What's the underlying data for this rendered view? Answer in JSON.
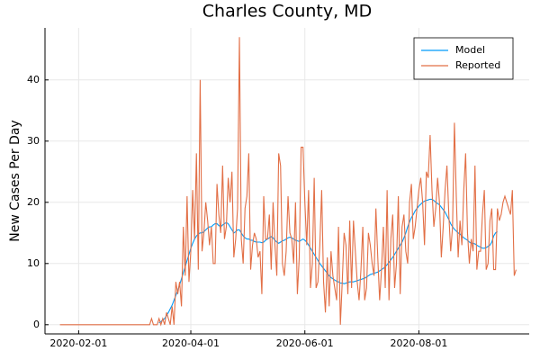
{
  "chart_data": {
    "type": "line",
    "title": "Charles County, MD",
    "y_label": "New Cases Per Day",
    "x": [
      "2020-01-22",
      "2020-01-23",
      "2020-01-24",
      "2020-01-25",
      "2020-01-26",
      "2020-01-27",
      "2020-01-28",
      "2020-01-29",
      "2020-01-30",
      "2020-01-31",
      "2020-02-01",
      "2020-02-02",
      "2020-02-03",
      "2020-02-04",
      "2020-02-05",
      "2020-02-06",
      "2020-02-07",
      "2020-02-08",
      "2020-02-09",
      "2020-02-10",
      "2020-02-11",
      "2020-02-12",
      "2020-02-13",
      "2020-02-14",
      "2020-02-15",
      "2020-02-16",
      "2020-02-17",
      "2020-02-18",
      "2020-02-19",
      "2020-02-20",
      "2020-02-21",
      "2020-02-22",
      "2020-02-23",
      "2020-02-24",
      "2020-02-25",
      "2020-02-26",
      "2020-02-27",
      "2020-02-28",
      "2020-02-29",
      "2020-03-01",
      "2020-03-02",
      "2020-03-03",
      "2020-03-04",
      "2020-03-05",
      "2020-03-06",
      "2020-03-07",
      "2020-03-08",
      "2020-03-09",
      "2020-03-10",
      "2020-03-11",
      "2020-03-12",
      "2020-03-13",
      "2020-03-14",
      "2020-03-15",
      "2020-03-16",
      "2020-03-17",
      "2020-03-18",
      "2020-03-19",
      "2020-03-20",
      "2020-03-21",
      "2020-03-22",
      "2020-03-23",
      "2020-03-24",
      "2020-03-25",
      "2020-03-26",
      "2020-03-27",
      "2020-03-28",
      "2020-03-29",
      "2020-03-30",
      "2020-03-31",
      "2020-04-01",
      "2020-04-02",
      "2020-04-03",
      "2020-04-04",
      "2020-04-05",
      "2020-04-06",
      "2020-04-07",
      "2020-04-08",
      "2020-04-09",
      "2020-04-10",
      "2020-04-11",
      "2020-04-12",
      "2020-04-13",
      "2020-04-14",
      "2020-04-15",
      "2020-04-16",
      "2020-04-17",
      "2020-04-18",
      "2020-04-19",
      "2020-04-20",
      "2020-04-21",
      "2020-04-22",
      "2020-04-23",
      "2020-04-24",
      "2020-04-25",
      "2020-04-26",
      "2020-04-27",
      "2020-04-28",
      "2020-04-29",
      "2020-04-30",
      "2020-05-01",
      "2020-05-02",
      "2020-05-03",
      "2020-05-04",
      "2020-05-05",
      "2020-05-06",
      "2020-05-07",
      "2020-05-08",
      "2020-05-09",
      "2020-05-10",
      "2020-05-11",
      "2020-05-12",
      "2020-05-13",
      "2020-05-14",
      "2020-05-15",
      "2020-05-16",
      "2020-05-17",
      "2020-05-18",
      "2020-05-19",
      "2020-05-20",
      "2020-05-21",
      "2020-05-22",
      "2020-05-23",
      "2020-05-24",
      "2020-05-25",
      "2020-05-26",
      "2020-05-27",
      "2020-05-28",
      "2020-05-29",
      "2020-05-30",
      "2020-05-31",
      "2020-06-01",
      "2020-06-02",
      "2020-06-03",
      "2020-06-04",
      "2020-06-05",
      "2020-06-06",
      "2020-06-07",
      "2020-06-08",
      "2020-06-09",
      "2020-06-10",
      "2020-06-11",
      "2020-06-12",
      "2020-06-13",
      "2020-06-14",
      "2020-06-15",
      "2020-06-16",
      "2020-06-17",
      "2020-06-18",
      "2020-06-19",
      "2020-06-20",
      "2020-06-21",
      "2020-06-22",
      "2020-06-23",
      "2020-06-24",
      "2020-06-25",
      "2020-06-26",
      "2020-06-27",
      "2020-06-28",
      "2020-06-29",
      "2020-06-30",
      "2020-07-01",
      "2020-07-02",
      "2020-07-03",
      "2020-07-04",
      "2020-07-05",
      "2020-07-06",
      "2020-07-07",
      "2020-07-08",
      "2020-07-09",
      "2020-07-10",
      "2020-07-11",
      "2020-07-12",
      "2020-07-13",
      "2020-07-14",
      "2020-07-15",
      "2020-07-16",
      "2020-07-17",
      "2020-07-18",
      "2020-07-19",
      "2020-07-20",
      "2020-07-21",
      "2020-07-22",
      "2020-07-23",
      "2020-07-24",
      "2020-07-25",
      "2020-07-26",
      "2020-07-27",
      "2020-07-28",
      "2020-07-29",
      "2020-07-30",
      "2020-07-31",
      "2020-08-01",
      "2020-08-02",
      "2020-08-03",
      "2020-08-04",
      "2020-08-05",
      "2020-08-06",
      "2020-08-07",
      "2020-08-08",
      "2020-08-09",
      "2020-08-10",
      "2020-08-11",
      "2020-08-12",
      "2020-08-13",
      "2020-08-14",
      "2020-08-15",
      "2020-08-16",
      "2020-08-17",
      "2020-08-18",
      "2020-08-19",
      "2020-08-20",
      "2020-08-21",
      "2020-08-22",
      "2020-08-23",
      "2020-08-24",
      "2020-08-25",
      "2020-08-26",
      "2020-08-27",
      "2020-08-28",
      "2020-08-29",
      "2020-08-30",
      "2020-08-31",
      "2020-09-01",
      "2020-09-02",
      "2020-09-03",
      "2020-09-04",
      "2020-09-05",
      "2020-09-06",
      "2020-09-07",
      "2020-09-08",
      "2020-09-09",
      "2020-09-10",
      "2020-09-11",
      "2020-09-12",
      "2020-09-13",
      "2020-09-14",
      "2020-09-15",
      "2020-09-16",
      "2020-09-17",
      "2020-09-18",
      "2020-09-19",
      "2020-09-20",
      "2020-09-21",
      "2020-09-22"
    ],
    "series": [
      {
        "name": "Model",
        "color": "#009af9",
        "values": [
          null,
          null,
          null,
          null,
          null,
          null,
          null,
          null,
          null,
          null,
          null,
          null,
          null,
          null,
          null,
          null,
          null,
          null,
          null,
          null,
          null,
          null,
          null,
          null,
          null,
          null,
          null,
          null,
          null,
          null,
          null,
          null,
          null,
          null,
          null,
          null,
          null,
          null,
          null,
          null,
          null,
          null,
          null,
          null,
          null,
          null,
          null,
          null,
          null,
          null,
          null,
          null,
          null,
          0.3,
          0.5,
          0.8,
          1,
          1.5,
          2,
          2.6,
          3.2,
          4,
          4.8,
          5.6,
          6.5,
          7.5,
          8.5,
          9.5,
          10.5,
          11.5,
          12.5,
          13.3,
          14,
          14.5,
          14.8,
          15,
          15,
          15.2,
          15.5,
          15.8,
          16,
          16,
          16.3,
          16.5,
          16.5,
          16.2,
          16,
          16.3,
          16.5,
          16.7,
          16.5,
          16,
          15.5,
          15,
          15.2,
          15.5,
          15.5,
          15,
          14.5,
          14.2,
          14,
          14,
          13.8,
          13.8,
          13.6,
          13.5,
          13.5,
          13.5,
          13.4,
          13.5,
          13.8,
          14,
          14.2,
          14.4,
          14.2,
          13.8,
          13.5,
          13.3,
          13.5,
          13.7,
          13.8,
          14,
          14.2,
          14.3,
          14.2,
          14,
          13.8,
          13.7,
          13.6,
          13.8,
          14,
          13.8,
          13.5,
          13,
          12.5,
          12,
          11.5,
          11,
          10.5,
          10,
          9.6,
          9.2,
          8.8,
          8.4,
          8,
          7.7,
          7.5,
          7.3,
          7.1,
          7,
          6.8,
          6.8,
          6.7,
          6.8,
          6.9,
          7,
          7,
          7,
          7.1,
          7.2,
          7.3,
          7.4,
          7.5,
          7.6,
          7.8,
          8,
          8.2,
          8.3,
          8.4,
          8.5,
          8.6,
          8.8,
          9,
          9.2,
          9.5,
          9.8,
          10.2,
          10.6,
          11,
          11.5,
          12,
          12.5,
          13,
          13.5,
          14.2,
          15,
          16,
          16.8,
          17.5,
          18,
          18.6,
          19,
          19.4,
          19.7,
          20,
          20.2,
          20.3,
          20.4,
          20.5,
          20.5,
          20.3,
          20,
          19.8,
          19.6,
          19.2,
          18.8,
          18.4,
          17.8,
          17.2,
          16.5,
          16,
          15.6,
          15.3,
          15,
          14.8,
          14.5,
          14.2,
          14,
          13.8,
          13.5,
          13.3,
          13.3,
          13.2,
          13,
          12.8,
          12.7,
          12.5,
          12.5,
          12.6,
          12.8,
          13,
          13.5,
          14.5,
          15,
          15.2,
          null,
          null,
          null,
          null,
          null,
          null,
          null,
          null,
          null,
          null
        ]
      },
      {
        "name": "Reported",
        "color": "#e26f46",
        "values": [
          0,
          0,
          0,
          0,
          0,
          0,
          0,
          0,
          0,
          0,
          0,
          0,
          0,
          0,
          0,
          0,
          0,
          0,
          0,
          0,
          0,
          0,
          0,
          0,
          0,
          0,
          0,
          0,
          0,
          0,
          0,
          0,
          0,
          0,
          0,
          0,
          0,
          0,
          0,
          0,
          0,
          0,
          0,
          0,
          0,
          0,
          0,
          0,
          0,
          1,
          0,
          0,
          0,
          1,
          0,
          1,
          0,
          2,
          1,
          0,
          3,
          0,
          7,
          5,
          7,
          3,
          16,
          8,
          21,
          7,
          12,
          22,
          14,
          28,
          9,
          40,
          12,
          15,
          20,
          17,
          13,
          16,
          10,
          10,
          23,
          18,
          15,
          26,
          14,
          16,
          24,
          20,
          25,
          11,
          14,
          19,
          47,
          14,
          10,
          19,
          21,
          28,
          9,
          13,
          15,
          14,
          11,
          12,
          5,
          21,
          14,
          14,
          18,
          9,
          20,
          13,
          8,
          28,
          26,
          10,
          8,
          12,
          21,
          15,
          14,
          10,
          20,
          5,
          11,
          29,
          29,
          20,
          13,
          22,
          6,
          10,
          24,
          6,
          7,
          13,
          22,
          7,
          2,
          11,
          3,
          12,
          8,
          6,
          4,
          16,
          0,
          7,
          15,
          13,
          5,
          17,
          6,
          17,
          12,
          7,
          4,
          9,
          16,
          4,
          6,
          15,
          13,
          10,
          8,
          19,
          11,
          4,
          9,
          16,
          6,
          22,
          4,
          14,
          18,
          6,
          10,
          21,
          5,
          16,
          18,
          12,
          10,
          20,
          23,
          14,
          16,
          19,
          22,
          24,
          20,
          13,
          25,
          24,
          31,
          22,
          16,
          19,
          24,
          20,
          11,
          16,
          22,
          26,
          18,
          12,
          16,
          33,
          21,
          11,
          17,
          13,
          22,
          28,
          15,
          10,
          14,
          12,
          26,
          9,
          12,
          12,
          18,
          22,
          9,
          10,
          17,
          19,
          9,
          9,
          19,
          17,
          18,
          20,
          21,
          20,
          19,
          18,
          22,
          8,
          9
        ]
      }
    ],
    "xlim": [
      "2020-01-14",
      "2020-09-29"
    ],
    "xticks": [
      "2020-02-01",
      "2020-04-01",
      "2020-06-01",
      "2020-08-01"
    ],
    "ylim": [
      -1.5,
      48.5
    ],
    "yticks": [
      0,
      10,
      20,
      30,
      40
    ],
    "grid": true,
    "legend": "top-right"
  }
}
